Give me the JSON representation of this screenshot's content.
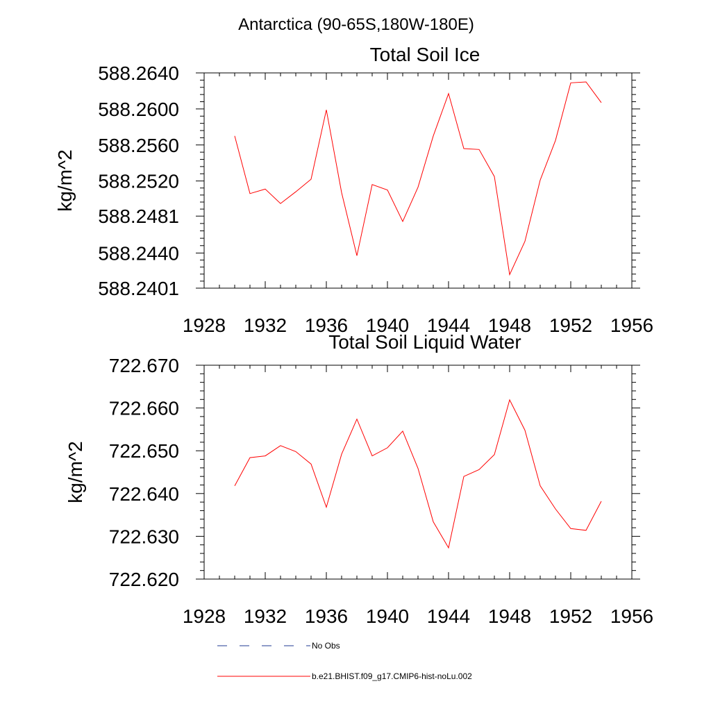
{
  "figure": {
    "supertitle": "Antarctica (90-65S,180W-180E)"
  },
  "colors": {
    "series": "#ff0000",
    "obs": "#1f3a93",
    "axis": "#000000"
  },
  "chart_data": [
    {
      "type": "line",
      "title": "Total Soil Ice",
      "xlabel": "",
      "ylabel": "kg/m^2",
      "xlim": [
        1928,
        1956
      ],
      "ylim": [
        588.2401,
        588.264
      ],
      "xticks": [
        "1928",
        "1932",
        "1936",
        "1940",
        "1944",
        "1948",
        "1952",
        "1956"
      ],
      "yticks": [
        {
          "value": 588.264,
          "label": "588.2640"
        },
        {
          "value": 588.26,
          "label": "588.2600"
        },
        {
          "value": 588.256,
          "label": "588.2560"
        },
        {
          "value": 588.252,
          "label": "588.2520"
        },
        {
          "value": 588.2481,
          "label": "588.2481"
        },
        {
          "value": 588.244,
          "label": "588.2440"
        },
        {
          "value": 588.2401,
          "label": "588.2401"
        }
      ],
      "x": [
        1930,
        1931,
        1932,
        1933,
        1934,
        1935,
        1936,
        1937,
        1938,
        1939,
        1940,
        1941,
        1942,
        1943,
        1944,
        1945,
        1946,
        1947,
        1948,
        1949,
        1950,
        1951,
        1952,
        1953,
        1954
      ],
      "series": [
        {
          "name": "b.e21.BHIST.f09_g17.CMIP6-hist-noLu.002",
          "values": [
            588.257,
            588.2506,
            588.2511,
            588.2495,
            588.2508,
            588.2522,
            588.2599,
            588.2507,
            588.2437,
            588.2516,
            588.251,
            588.2475,
            588.2513,
            588.257,
            588.2617,
            588.2556,
            588.2555,
            588.2525,
            588.2416,
            588.2453,
            588.2521,
            588.2565,
            588.2629,
            588.263,
            588.2607
          ]
        }
      ]
    },
    {
      "type": "line",
      "title": "Total Soil Liquid Water",
      "xlabel": "",
      "ylabel": "kg/m^2",
      "xlim": [
        1928,
        1956
      ],
      "ylim": [
        722.62,
        722.67
      ],
      "xticks": [
        "1928",
        "1932",
        "1936",
        "1940",
        "1944",
        "1948",
        "1952",
        "1956"
      ],
      "yticks": [
        {
          "value": 722.67,
          "label": "722.670"
        },
        {
          "value": 722.66,
          "label": "722.660"
        },
        {
          "value": 722.65,
          "label": "722.650"
        },
        {
          "value": 722.64,
          "label": "722.640"
        },
        {
          "value": 722.63,
          "label": "722.630"
        },
        {
          "value": 722.62,
          "label": "722.620"
        }
      ],
      "x": [
        1930,
        1931,
        1932,
        1933,
        1934,
        1935,
        1936,
        1937,
        1938,
        1939,
        1940,
        1941,
        1942,
        1943,
        1944,
        1945,
        1946,
        1947,
        1948,
        1949,
        1950,
        1951,
        1952,
        1953,
        1954
      ],
      "series": [
        {
          "name": "b.e21.BHIST.f09_g17.CMIP6-hist-noLu.002",
          "values": [
            722.6418,
            722.6484,
            722.6488,
            722.6512,
            722.6498,
            722.6469,
            722.6368,
            722.6492,
            722.6574,
            722.6488,
            722.6507,
            722.6546,
            722.6459,
            722.6334,
            722.6273,
            722.644,
            722.6456,
            722.6491,
            722.6619,
            722.6548,
            722.6418,
            722.6364,
            722.6318,
            722.6314,
            722.6382
          ]
        }
      ]
    }
  ],
  "legend": {
    "items": [
      {
        "label": "No Obs",
        "style": "dashed",
        "color": "#1f3a93"
      },
      {
        "label": "b.e21.BHIST.f09_g17.CMIP6-hist-noLu.002",
        "style": "solid",
        "color": "#ff0000"
      }
    ]
  }
}
